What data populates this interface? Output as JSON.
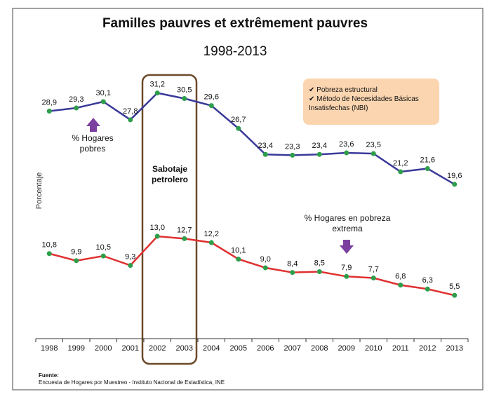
{
  "chart_data": {
    "type": "line",
    "title": "Familles pauvres et extrêmement pauvres",
    "subtitle": "1998-2013",
    "y_label": "Porcentaje",
    "categories": [
      "1998",
      "1999",
      "2000",
      "2001",
      "2002",
      "2003",
      "2004",
      "2005",
      "2006",
      "2007",
      "2008",
      "2009",
      "2010",
      "2011",
      "2012",
      "2013"
    ],
    "series": [
      {
        "name": "% Hogares pobres",
        "color": "#3a3a9a",
        "values": [
          28.9,
          29.3,
          30.1,
          27.8,
          31.2,
          30.5,
          29.6,
          26.7,
          23.4,
          23.3,
          23.4,
          23.6,
          23.5,
          21.2,
          21.6,
          19.6
        ],
        "value_labels": [
          "28,9",
          "29,3",
          "30,1",
          "27,8",
          "31,2",
          "30,5",
          "29,6",
          "26,7",
          "23,4",
          "23,3",
          "23,4",
          "23,6",
          "23,5",
          "21,2",
          "21,6",
          "19,6"
        ]
      },
      {
        "name": "% Hogares en pobreza extrema",
        "color": "#e03030",
        "values": [
          10.8,
          9.9,
          10.5,
          9.3,
          13.0,
          12.7,
          12.2,
          10.1,
          9.0,
          8.4,
          8.5,
          7.9,
          7.7,
          6.8,
          6.3,
          5.5
        ],
        "value_labels": [
          "10,8",
          "9,9",
          "10,5",
          "9,3",
          "13,0",
          "12,7",
          "12,2",
          "10,1",
          "9,0",
          "8,4",
          "8,5",
          "7,9",
          "7,7",
          "6,8",
          "6,3",
          "5,5"
        ]
      }
    ],
    "marker_color": "#2e9e4a",
    "ylim": [
      0,
      35
    ],
    "annotation": "Sabotaje petrolero",
    "notes": [
      "Pobreza estructural",
      "Método de Necesidades Básicas Insatisfechas (NBI)"
    ],
    "source_title": "Fuente:",
    "source": "Encuesta de Hogares por Muestreo - Instituto Nacional de Estadística, INE"
  }
}
